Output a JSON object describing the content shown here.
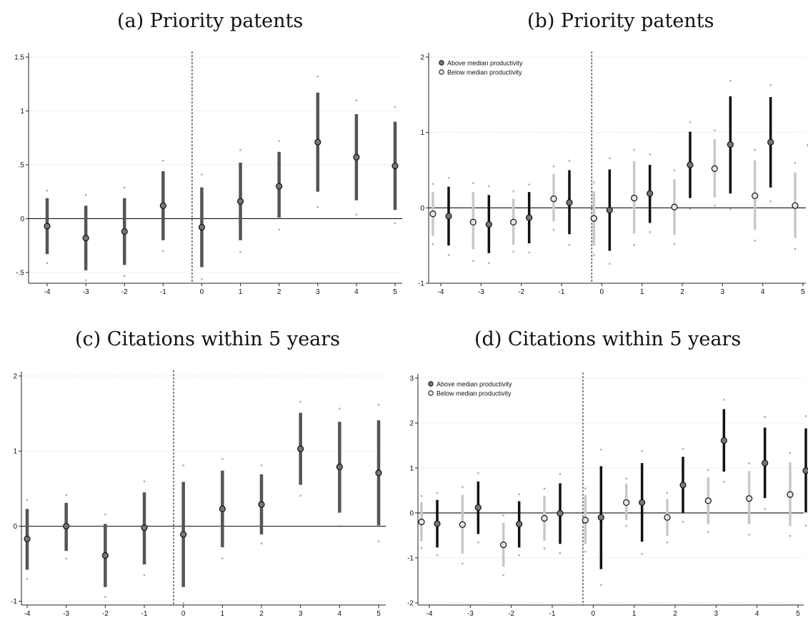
{
  "panels": {
    "a": {
      "title": "(a) Priority patents"
    },
    "b": {
      "title": "(b) Priority patents"
    },
    "c": {
      "title": "(c) Citations within 5 years"
    },
    "d": {
      "title": "(d) Citations within 5 years"
    }
  },
  "chart_data": [
    {
      "id": "a",
      "type": "scatter",
      "title": "(a) Priority patents",
      "x": [
        -4,
        -3,
        -2,
        -1,
        0,
        1,
        2,
        3,
        4,
        5
      ],
      "ylim": [
        -0.6,
        1.5
      ],
      "yticks": [
        -0.5,
        0,
        0.5,
        1,
        1.5
      ],
      "ytick_labels": [
        "-.5",
        "0",
        ".5",
        "1",
        "1.5"
      ],
      "event_line_x": -0.25,
      "grid": true,
      "series": [
        {
          "color": "#555555",
          "estimate": [
            -0.07,
            -0.18,
            -0.12,
            0.12,
            -0.08,
            0.16,
            0.3,
            0.71,
            0.57,
            0.49
          ],
          "ci_lower": [
            -0.33,
            -0.48,
            -0.43,
            -0.2,
            -0.45,
            -0.2,
            0.01,
            0.25,
            0.17,
            0.08
          ],
          "ci_upper": [
            0.19,
            0.12,
            0.19,
            0.44,
            0.29,
            0.52,
            0.62,
            1.17,
            0.97,
            0.9
          ],
          "outer_lower": [
            -0.41,
            -0.57,
            -0.53,
            -0.3,
            -0.56,
            -0.31,
            -0.1,
            0.11,
            0.04,
            -0.04
          ],
          "outer_upper": [
            0.26,
            0.22,
            0.29,
            0.54,
            0.41,
            0.64,
            0.72,
            1.32,
            1.1,
            1.04
          ]
        }
      ]
    },
    {
      "id": "b",
      "type": "scatter",
      "title": "(b) Priority patents",
      "x": [
        -4,
        -3,
        -2,
        -1,
        0,
        1,
        2,
        3,
        4,
        5
      ],
      "ylim": [
        -1.0,
        2.0
      ],
      "yticks": [
        -1,
        0,
        1,
        2
      ],
      "ytick_labels": [
        "-1",
        "0",
        "1",
        "2"
      ],
      "event_line_x": -0.25,
      "grid": true,
      "legend": "top-left",
      "series": [
        {
          "name": "Above median productivity",
          "color": "#111111",
          "estimate": [
            -0.11,
            -0.22,
            -0.13,
            0.07,
            -0.03,
            0.19,
            0.57,
            0.84,
            0.87,
            0.83
          ],
          "ci_lower": [
            -0.5,
            -0.6,
            -0.47,
            -0.35,
            -0.57,
            -0.2,
            0.13,
            0.19,
            0.27,
            0.32
          ],
          "ci_upper": [
            0.28,
            0.17,
            0.21,
            0.5,
            0.51,
            0.57,
            1.01,
            1.48,
            1.47,
            1.33
          ],
          "outer_lower": [
            -0.62,
            -0.73,
            -0.59,
            -0.49,
            -0.74,
            -0.32,
            -0.01,
            -0.01,
            0.09,
            0.17
          ],
          "outer_upper": [
            0.4,
            0.29,
            0.31,
            0.63,
            0.66,
            0.71,
            1.14,
            1.69,
            1.63,
            1.49
          ]
        },
        {
          "name": "Below median productivity",
          "color": "#c8c8c8",
          "estimate": [
            -0.08,
            -0.19,
            -0.19,
            0.12,
            -0.14,
            0.13,
            0.01,
            0.52,
            0.16,
            0.03
          ],
          "ci_lower": [
            -0.37,
            -0.55,
            -0.49,
            -0.18,
            -0.5,
            -0.34,
            -0.36,
            0.14,
            -0.29,
            -0.4
          ],
          "ci_upper": [
            0.21,
            0.21,
            0.12,
            0.45,
            0.22,
            0.62,
            0.38,
            0.91,
            0.63,
            0.47
          ],
          "outer_lower": [
            -0.48,
            -0.7,
            -0.58,
            -0.29,
            -0.62,
            -0.49,
            -0.48,
            0.03,
            -0.43,
            -0.54
          ],
          "outer_upper": [
            0.32,
            0.33,
            0.22,
            0.55,
            0.34,
            0.77,
            0.5,
            1.03,
            0.77,
            0.6
          ]
        }
      ]
    },
    {
      "id": "c",
      "type": "scatter",
      "title": "(c) Citations within 5 years",
      "x": [
        -4,
        -3,
        -2,
        -1,
        0,
        1,
        2,
        3,
        4,
        5
      ],
      "ylim": [
        -1.05,
        2.0
      ],
      "yticks": [
        -1,
        0,
        1,
        2
      ],
      "ytick_labels": [
        "-1",
        "0",
        "1",
        "2"
      ],
      "event_line_x": -0.25,
      "grid": true,
      "series": [
        {
          "color": "#555555",
          "estimate": [
            -0.17,
            0.0,
            -0.39,
            -0.02,
            -0.11,
            0.23,
            0.29,
            1.03,
            0.79,
            0.71
          ],
          "ci_lower": [
            -0.58,
            -0.33,
            -0.81,
            -0.51,
            -0.81,
            -0.28,
            -0.11,
            0.55,
            0.18,
            0.01
          ],
          "ci_upper": [
            0.23,
            0.31,
            0.03,
            0.45,
            0.59,
            0.74,
            0.69,
            1.51,
            1.39,
            1.41
          ],
          "outer_lower": [
            -0.7,
            -0.43,
            -0.94,
            -0.65,
            -1.02,
            -0.43,
            -0.23,
            0.41,
            0.0,
            -0.2
          ],
          "outer_upper": [
            0.35,
            0.42,
            0.16,
            0.6,
            0.81,
            0.9,
            0.81,
            1.66,
            1.57,
            1.62
          ]
        }
      ]
    },
    {
      "id": "d",
      "type": "scatter",
      "title": "(d) Citations within 5 years",
      "x": [
        -4,
        -3,
        -2,
        -1,
        0,
        1,
        2,
        3,
        4,
        5
      ],
      "ylim": [
        -2.05,
        3.0
      ],
      "yticks": [
        -2,
        -1,
        0,
        1,
        2,
        3
      ],
      "ytick_labels": [
        "-2",
        "-1",
        "0",
        "1",
        "2",
        "3"
      ],
      "event_line_x": -0.25,
      "grid": true,
      "legend": "top-left",
      "series": [
        {
          "name": "Above median productivity",
          "color": "#111111",
          "estimate": [
            -0.24,
            0.12,
            -0.25,
            -0.01,
            -0.1,
            0.23,
            0.62,
            1.61,
            1.11,
            0.94
          ],
          "ci_lower": [
            -0.77,
            -0.47,
            -0.77,
            -0.69,
            -1.25,
            -0.64,
            0.0,
            0.92,
            0.33,
            0.01
          ],
          "ci_upper": [
            0.29,
            0.7,
            0.26,
            0.66,
            1.04,
            1.11,
            1.25,
            2.31,
            1.9,
            1.88
          ],
          "outer_lower": [
            -0.94,
            -0.65,
            -0.94,
            -0.89,
            -1.6,
            -0.91,
            -0.19,
            0.7,
            0.09,
            -0.28
          ],
          "outer_upper": [
            0.45,
            0.89,
            0.42,
            0.87,
            1.41,
            1.38,
            1.43,
            2.52,
            2.14,
            2.16
          ]
        },
        {
          "name": "Below median productivity",
          "color": "#c8c8c8",
          "estimate": [
            -0.2,
            -0.26,
            -0.71,
            -0.12,
            -0.16,
            0.23,
            -0.1,
            0.27,
            0.32,
            0.41
          ],
          "ci_lower": [
            -0.63,
            -0.91,
            -1.2,
            -0.62,
            -0.69,
            -0.16,
            -0.51,
            -0.25,
            -0.25,
            -0.29
          ],
          "ci_upper": [
            0.24,
            0.4,
            -0.22,
            0.38,
            0.4,
            0.65,
            0.31,
            0.79,
            0.93,
            1.12
          ],
          "outer_lower": [
            -0.78,
            -1.12,
            -1.38,
            -0.79,
            -0.86,
            -0.29,
            -0.65,
            -0.42,
            -0.48,
            -0.51
          ],
          "outer_upper": [
            0.38,
            0.58,
            -0.05,
            0.55,
            0.55,
            0.77,
            0.45,
            0.96,
            1.11,
            1.34
          ]
        }
      ]
    }
  ]
}
